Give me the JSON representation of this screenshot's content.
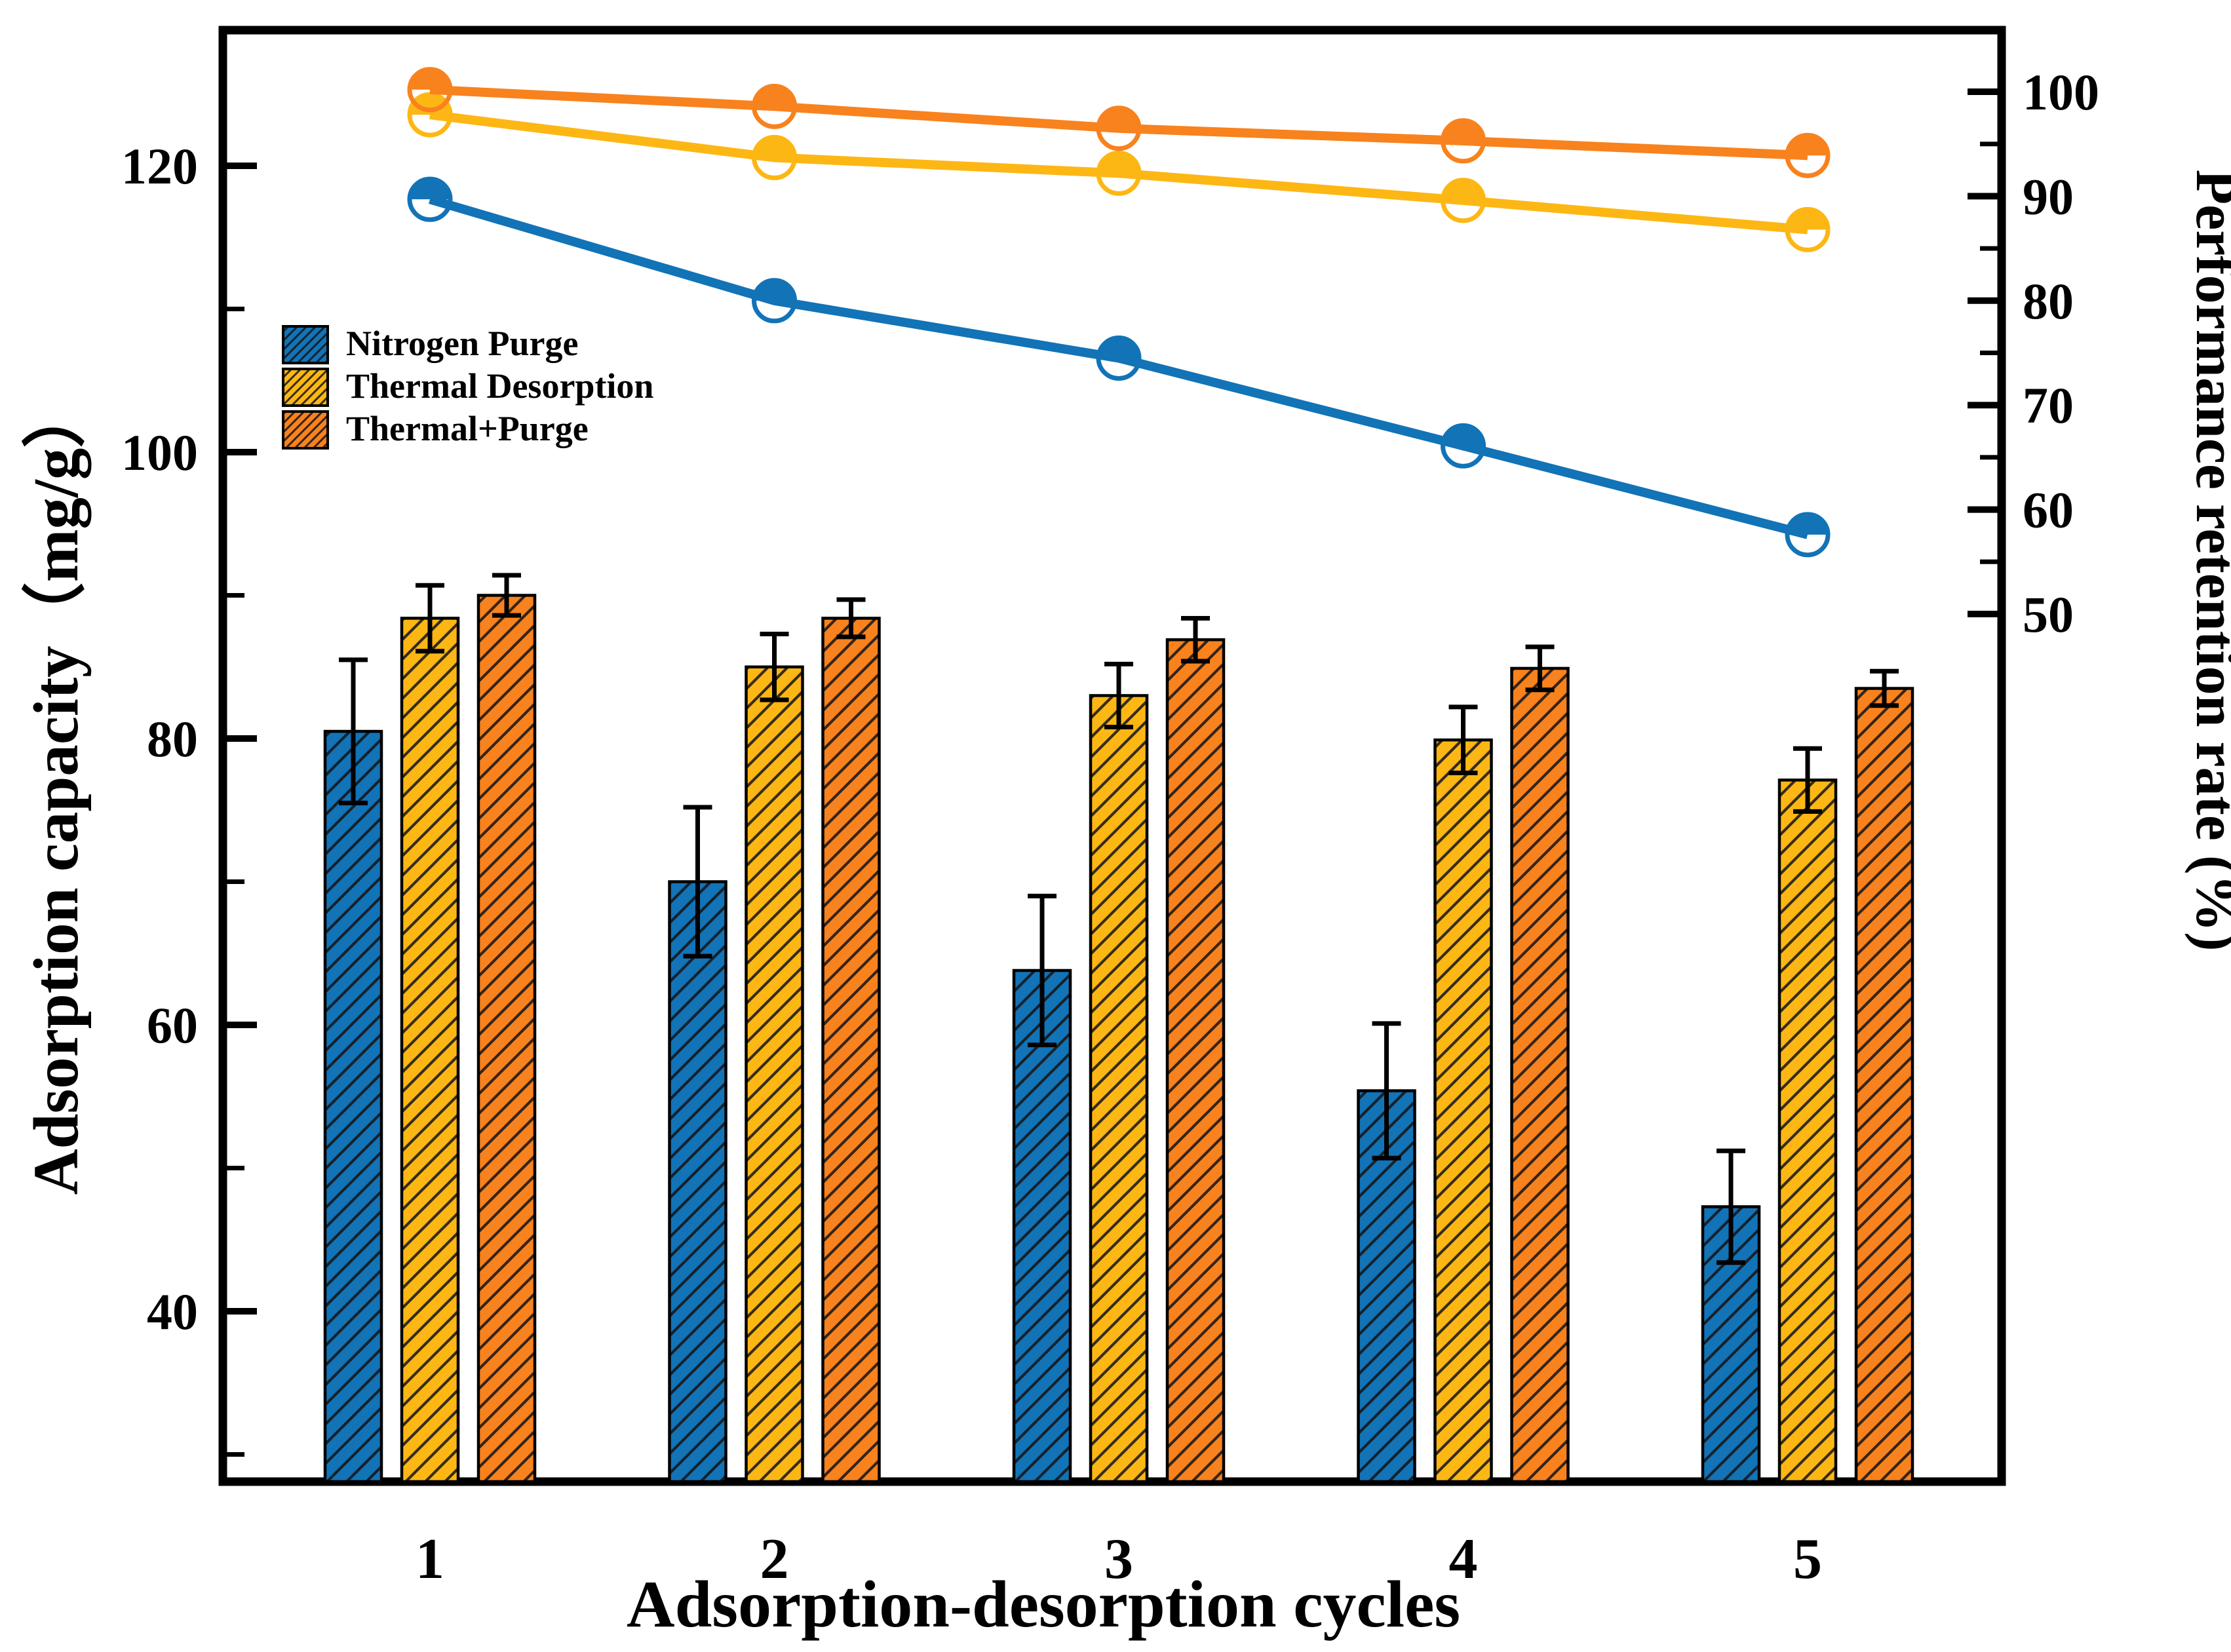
{
  "figure": {
    "background": "#ffffff",
    "frame_color": "#000000"
  },
  "chart_data": {
    "type": "bar+line (dual axis)",
    "categories": [
      "1",
      "2",
      "3",
      "4",
      "5"
    ],
    "xlabel": "Adsorption-desorption cycles",
    "left_axis": {
      "label": "Adsorption capacity（mg/g）",
      "major_ticks": [
        120,
        100,
        80,
        60,
        40
      ],
      "minor_ticks": [
        110,
        90,
        70,
        50,
        30
      ],
      "range": [
        28,
        129.7
      ]
    },
    "right_axis": {
      "label": "Performance retention rate (%)",
      "major_ticks": [
        100,
        90,
        80,
        70,
        60,
        50
      ],
      "minor_ticks": [
        95,
        85,
        75,
        65,
        55
      ],
      "range_top": 106.6
    },
    "bar_series": [
      {
        "name": "Nitrogen Purge",
        "color": "#1273b7",
        "values": [
          80.5,
          70.0,
          63.8,
          55.4,
          47.3
        ],
        "errors": [
          5.0,
          5.2,
          5.2,
          4.7,
          3.9
        ]
      },
      {
        "name": "Thermal Desorption",
        "color": "#fdb714",
        "values": [
          88.4,
          85.0,
          83.0,
          79.9,
          77.1
        ],
        "errors": [
          2.3,
          2.3,
          2.2,
          2.3,
          2.2
        ]
      },
      {
        "name": "Thermal+Purge",
        "color": "#f8821d",
        "values": [
          90.0,
          88.4,
          86.9,
          84.9,
          83.5
        ],
        "errors": [
          1.4,
          1.3,
          1.5,
          1.5,
          1.2
        ]
      }
    ],
    "line_series": [
      {
        "name": "Nitrogen Purge",
        "color": "#1273b7",
        "values": [
          89.7,
          80.0,
          74.5,
          66.1,
          57.6
        ]
      },
      {
        "name": "Thermal Desorption",
        "color": "#fdb714",
        "values": [
          97.8,
          93.7,
          92.2,
          89.6,
          86.8
        ]
      },
      {
        "name": "Thermal+Purge",
        "color": "#f8821d",
        "values": [
          100.2,
          98.6,
          96.5,
          95.3,
          93.9
        ]
      }
    ],
    "legend": {
      "items": [
        "Nitrogen Purge",
        "Thermal Desorption",
        "Thermal+Purge"
      ],
      "position": "upper-left-inside"
    },
    "marker_style": "half-filled circle (top half solid, bottom half open)",
    "bar_hatch": "diagonal /",
    "grid": false
  }
}
